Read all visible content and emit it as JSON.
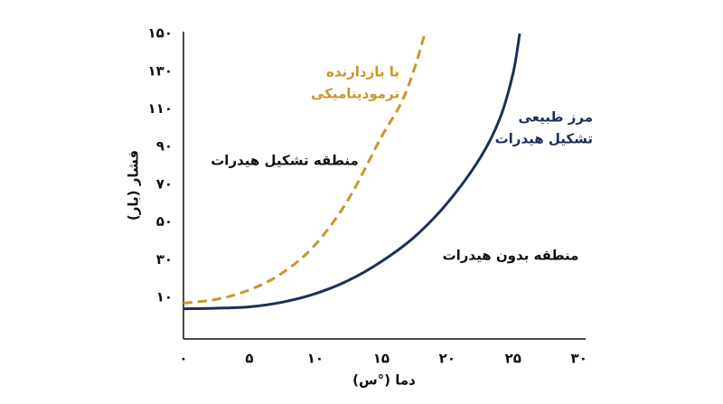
{
  "chart_data": {
    "type": "line",
    "x_label": "دما (°س)",
    "y_label": "فشار (بار)",
    "xlim": [
      0,
      30.5
    ],
    "ylim": [
      -12,
      151
    ],
    "xticks": [
      {
        "value": 0,
        "label": "۰"
      },
      {
        "value": 5,
        "label": "۵"
      },
      {
        "value": 10,
        "label": "۱۰"
      },
      {
        "value": 15,
        "label": "۱۵"
      },
      {
        "value": 20,
        "label": "۲۰"
      },
      {
        "value": 25,
        "label": "۲۵"
      },
      {
        "value": 30,
        "label": "۳۰"
      }
    ],
    "yticks": [
      {
        "value": 10,
        "label": "۱۰"
      },
      {
        "value": 30,
        "label": "۳۰"
      },
      {
        "value": 50,
        "label": "۵۰"
      },
      {
        "value": 70,
        "label": "۷۰"
      },
      {
        "value": 90,
        "label": "۹۰"
      },
      {
        "value": 110,
        "label": "۱۱۰"
      },
      {
        "value": 130,
        "label": "۱۳۰"
      },
      {
        "value": 150,
        "label": "۱۵۰"
      }
    ],
    "grid": false,
    "series": [
      {
        "color": "#1b2f5b",
        "dashed": false,
        "x": [
          0,
          2.5,
          5,
          7.5,
          10,
          12.5,
          15,
          17.5,
          20,
          22.5,
          24,
          25,
          25.5
        ],
        "values": [
          4,
          4.3,
          5,
          7.5,
          12,
          19,
          29,
          42,
          60,
          84,
          105,
          129,
          150
        ]
      },
      {
        "color": "#c9962f",
        "dashed": true,
        "x": [
          0,
          2.5,
          5,
          7.5,
          10,
          12.5,
          15,
          16.5,
          17.5,
          18.3
        ],
        "values": [
          7,
          9,
          14,
          23,
          38,
          62,
          95,
          113,
          131,
          150
        ]
      }
    ],
    "annotations": [
      {
        "lines": [
          "با بازدارنده",
          "ترمودینامیکی"
        ],
        "color": "#c9962f"
      },
      {
        "lines": [
          "مرز طبیعی",
          "تشکیل هیدرات"
        ],
        "color": "#1b2f5b"
      },
      {
        "lines": [
          "منطقه تشکیل هیدرات"
        ],
        "color": "#111111"
      },
      {
        "lines": [
          "منطقه بدون هیدرات"
        ],
        "color": "#111111"
      }
    ]
  }
}
